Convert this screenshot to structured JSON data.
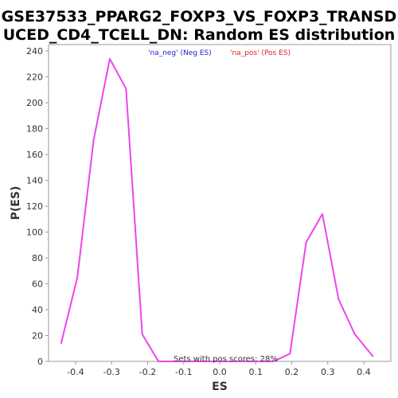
{
  "chart_data": {
    "type": "line",
    "title_line1": "GSE37533_PPARG2_FOXP3_VS_FOXP3_TRANSD",
    "title_line2": "UCED_CD4_TCELL_DN: Random ES distribution",
    "xlabel": "ES",
    "ylabel": "P(ES)",
    "xlim": [
      -0.475,
      0.475
    ],
    "ylim": [
      0,
      245
    ],
    "xticks": [
      -0.4,
      -0.3,
      -0.2,
      -0.1,
      0.0,
      0.1,
      0.2,
      0.3,
      0.4
    ],
    "xtick_labels": [
      "-0.4",
      "-0.3",
      "-0.2",
      "-0.1",
      "0.0",
      "0.1",
      "0.2",
      "0.3",
      "0.4"
    ],
    "yticks": [
      0,
      20,
      40,
      60,
      80,
      100,
      120,
      140,
      160,
      180,
      200,
      220,
      240
    ],
    "ytick_labels": [
      "0",
      "20",
      "40",
      "60",
      "80",
      "100",
      "120",
      "140",
      "160",
      "180",
      "200",
      "220",
      "240"
    ],
    "series": [
      {
        "color": "#ee44ee",
        "x": [
          -0.44,
          -0.395,
          -0.35,
          -0.305,
          -0.26,
          -0.215,
          -0.17,
          -0.125,
          -0.08,
          -0.035,
          0.01,
          0.055,
          0.1,
          0.15,
          0.195,
          0.24,
          0.285,
          0.33,
          0.375,
          0.425
        ],
        "y": [
          14,
          65,
          171,
          234,
          211,
          21,
          0,
          0,
          0,
          0,
          0,
          0,
          0,
          0,
          6,
          92,
          114,
          48,
          21,
          4
        ]
      }
    ],
    "legend": [
      {
        "label": "'na_neg' (Neg ES)",
        "color": "#2222cc"
      },
      {
        "label": "'na_pos' (Pos ES)",
        "color": "#dd2222"
      }
    ],
    "legend_position": "top-center",
    "annotation": "Sets with pos scores: 28%",
    "grid": false
  }
}
